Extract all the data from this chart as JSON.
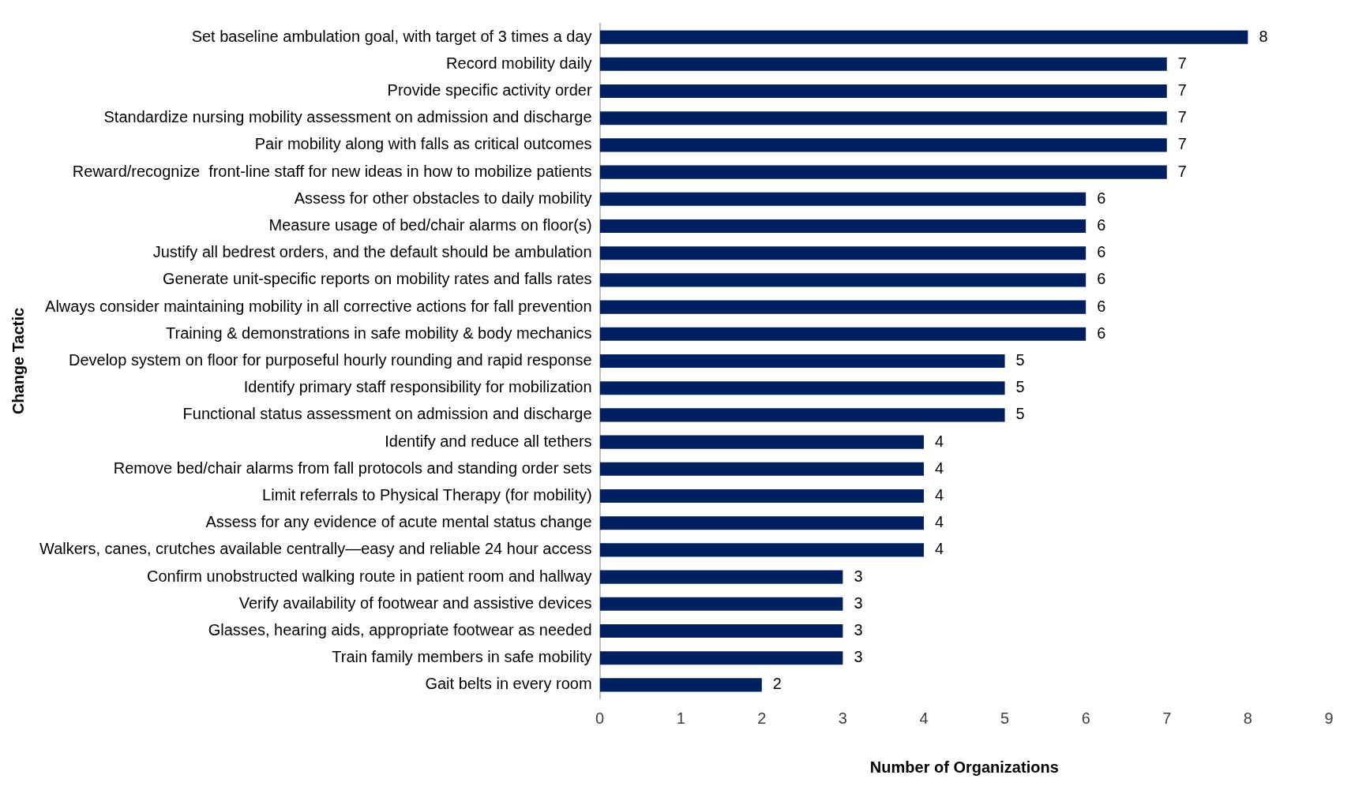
{
  "chart_data": {
    "type": "bar",
    "orientation": "horizontal",
    "xlabel": "Number of Organizations",
    "ylabel": "Change Tactic",
    "categories": [
      "Set baseline ambulation goal, with target of 3 times a day",
      "Record mobility daily",
      "Provide specific activity order",
      "Standardize nursing mobility assessment on admission and discharge",
      "Pair mobility along with falls as critical outcomes",
      "Reward/recognize  front-line staff for new ideas in how to mobilize patients",
      "Assess for other obstacles to daily mobility",
      "Measure usage of bed/chair alarms on floor(s)",
      "Justify all bedrest orders, and the default should be ambulation",
      "Generate unit-specific reports on mobility rates and falls rates",
      "Always consider maintaining mobility in all corrective actions for fall prevention",
      "Training & demonstrations in safe mobility & body mechanics",
      "Develop system on floor for purposeful hourly rounding and rapid response",
      "Identify primary staff responsibility for mobilization",
      "Functional status assessment on admission and discharge",
      "Identify and reduce all tethers",
      "Remove bed/chair alarms from fall protocols and standing order sets",
      "Limit referrals to Physical Therapy (for mobility)",
      "Assess for any evidence of acute mental status change",
      "Walkers, canes, crutches available centrally—easy and reliable 24 hour access",
      "Confirm unobstructed walking route in patient room and hallway",
      "Verify availability of footwear and assistive devices",
      "Glasses, hearing aids, appropriate footwear as needed",
      "Train family members in safe mobility",
      "Gait belts in every room"
    ],
    "values": [
      8,
      7,
      7,
      7,
      7,
      7,
      6,
      6,
      6,
      6,
      6,
      6,
      5,
      5,
      5,
      4,
      4,
      4,
      4,
      4,
      3,
      3,
      3,
      3,
      2
    ],
    "color": "#002060",
    "xlim": [
      0,
      9
    ],
    "xticks": [
      0,
      1,
      2,
      3,
      4,
      5,
      6,
      7,
      8,
      9
    ],
    "grid": false,
    "legend": false,
    "data_labels": true
  }
}
